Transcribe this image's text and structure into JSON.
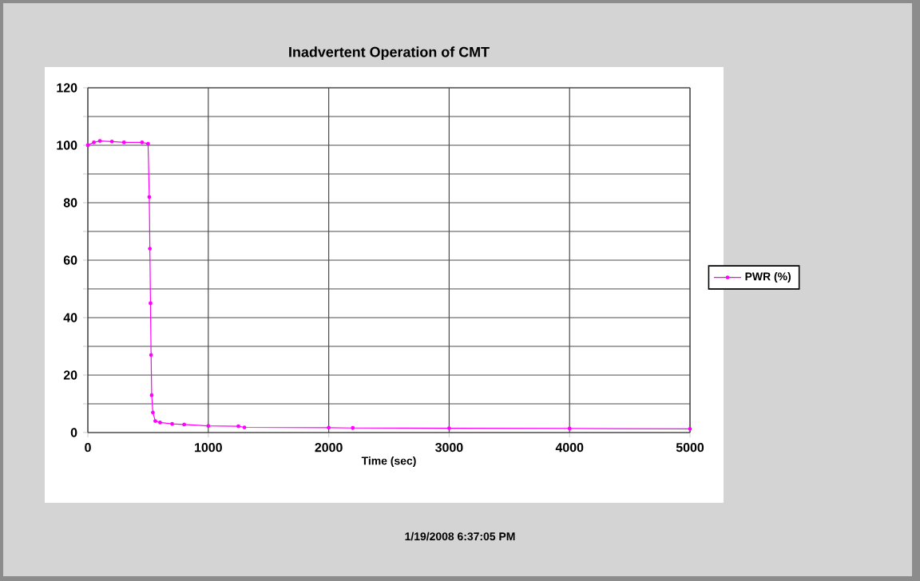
{
  "chart_data": {
    "type": "line",
    "title": "Inadvertent Operation of CMT",
    "xlabel": "Time (sec)",
    "annotations": [
      "1/19/2008 6:37:05 PM"
    ],
    "x": [
      0,
      50,
      100,
      200,
      300,
      450,
      500,
      510,
      515,
      520,
      525,
      530,
      540,
      560,
      600,
      700,
      800,
      1000,
      1250,
      1300,
      2000,
      2200,
      3000,
      4000,
      5000
    ],
    "series": [
      {
        "name": "PWR (%)",
        "color": "#ff00ff",
        "values": [
          100,
          101,
          101.5,
          101.3,
          101,
          101,
          100.5,
          82,
          64,
          45,
          27,
          13,
          7,
          4,
          3.5,
          3,
          2.8,
          2.3,
          2.2,
          1.8,
          1.7,
          1.6,
          1.5,
          1.4,
          1.3
        ]
      }
    ],
    "xlim": [
      0,
      5000
    ],
    "ylim": [
      0,
      120
    ],
    "xticks": [
      0,
      1000,
      2000,
      3000,
      4000,
      5000
    ],
    "yticks": [
      0,
      {
        "value": 10,
        "label": null
      },
      20,
      {
        "value": 30,
        "label": null
      },
      40,
      {
        "value": 50,
        "label": null
      },
      60,
      {
        "value": 70,
        "label": null
      },
      80,
      {
        "value": 90,
        "label": null
      },
      100,
      {
        "value": 110,
        "label": null
      },
      120
    ],
    "grid": true,
    "legend": "right",
    "marker": "circle",
    "line_style": "solid"
  }
}
